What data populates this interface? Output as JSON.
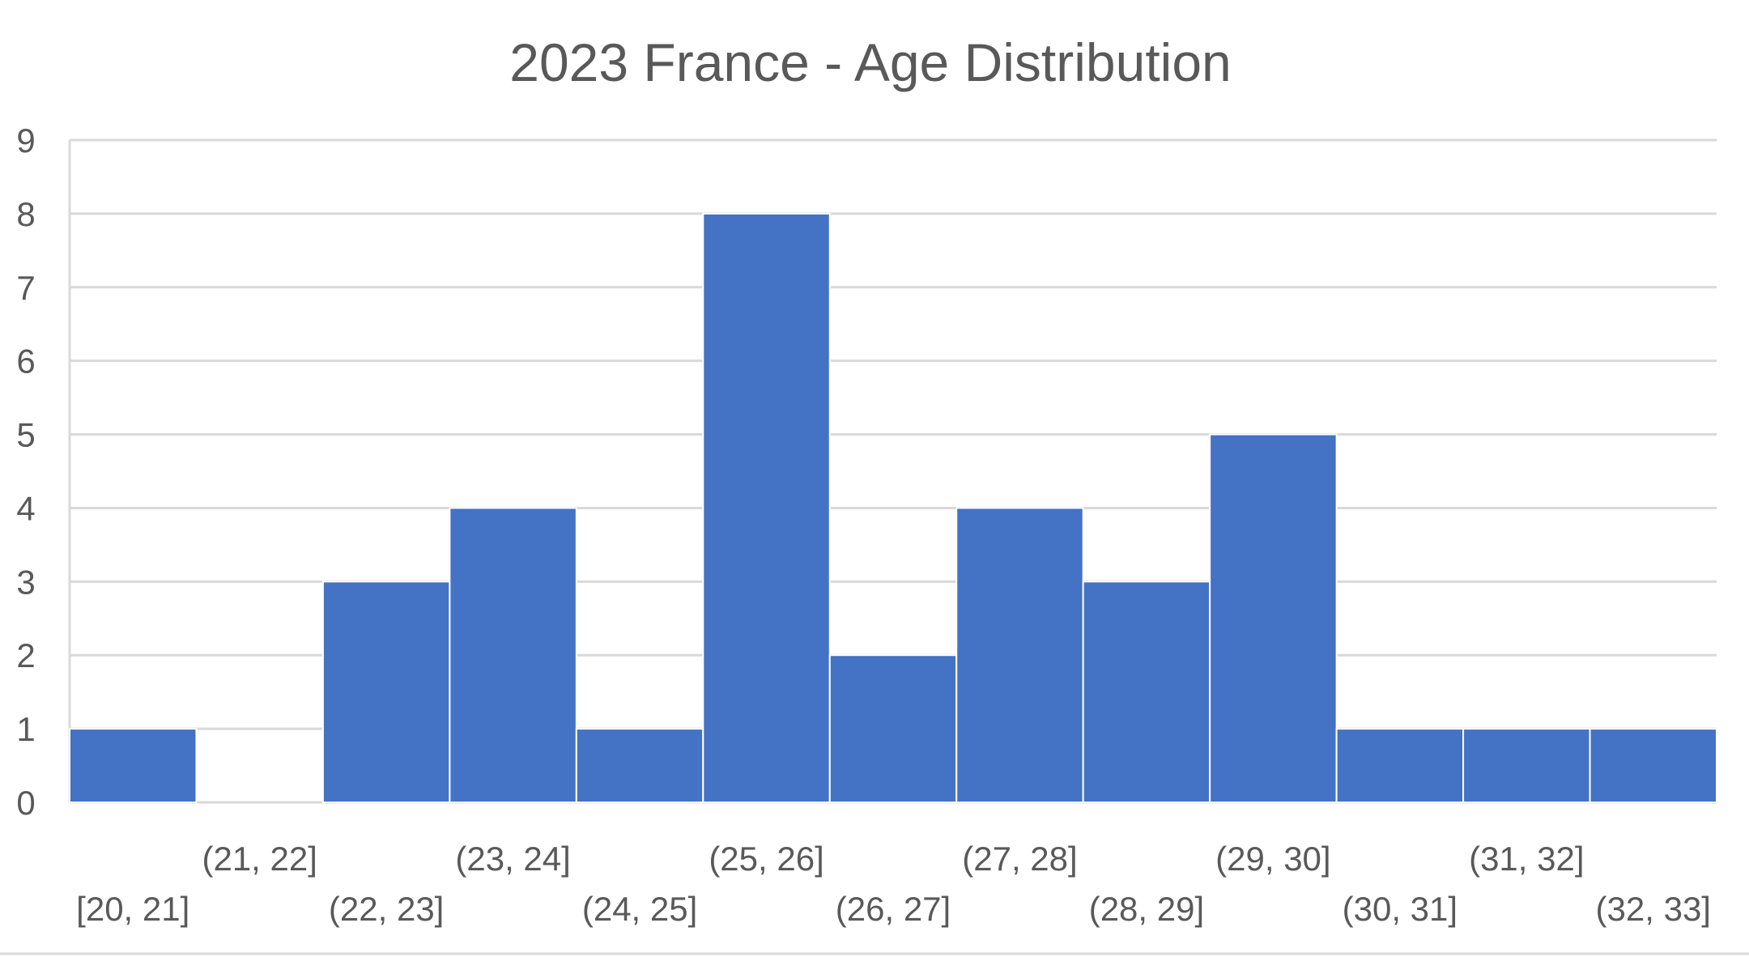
{
  "chart_data": {
    "type": "bar",
    "title": "2023 France - Age Distribution",
    "xlabel": "",
    "ylabel": "",
    "categories": [
      "[20, 21]",
      "(21, 22]",
      "(22, 23]",
      "(23, 24]",
      "(24, 25]",
      "(25, 26]",
      "(26, 27]",
      "(27, 28]",
      "(28, 29]",
      "(29, 30]",
      "(30, 31]",
      "(31, 32]",
      "(32, 33]"
    ],
    "values": [
      1,
      0,
      3,
      4,
      1,
      8,
      2,
      4,
      3,
      5,
      1,
      1,
      1
    ],
    "ylim": [
      0,
      9
    ],
    "yticks": [
      "0",
      "1",
      "2",
      "3",
      "4",
      "5",
      "6",
      "7",
      "8",
      "9"
    ],
    "grid": true,
    "legend": "none",
    "colors": {
      "bar": "#4472C4",
      "bar_gap": "#ffffff",
      "grid": "#D9D9D9",
      "text": "#595959",
      "frame": "#D9D9D9"
    }
  }
}
